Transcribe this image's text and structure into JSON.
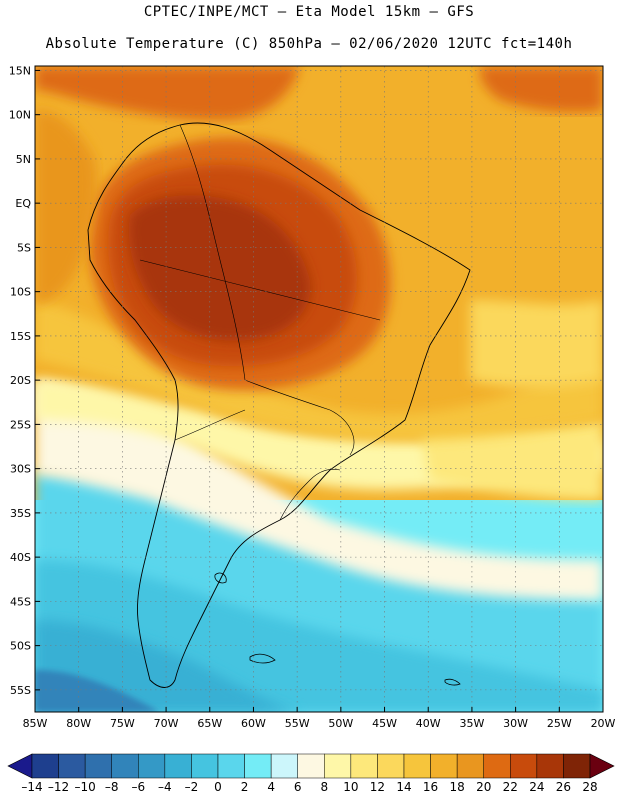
{
  "header": {
    "line1": "CPTEC/INPE/MCT –  Eta Model 15km – GFS",
    "line2": "Absolute Temperature (C) 850hPa – 02/06/2020 12UTC fct=140h"
  },
  "axes": {
    "lat_labels": [
      "15N",
      "10N",
      "5N",
      "EQ",
      "5S",
      "10S",
      "15S",
      "20S",
      "25S",
      "30S",
      "35S",
      "40S",
      "45S",
      "50S",
      "55S"
    ],
    "lon_labels": [
      "85W",
      "80W",
      "75W",
      "70W",
      "65W",
      "60W",
      "55W",
      "50W",
      "45W",
      "40W",
      "35W",
      "30W",
      "25W",
      "20W"
    ],
    "lon_range": [
      -85,
      -20
    ],
    "lat_range": [
      -57.5,
      15.5
    ],
    "grid": true
  },
  "colorbar": {
    "labels": [
      "-14",
      "-12",
      "-10",
      "-8",
      "-6",
      "-4",
      "-2",
      "0",
      "2",
      "4",
      "6",
      "8",
      "10",
      "12",
      "14",
      "16",
      "18",
      "20",
      "22",
      "24",
      "26",
      "28"
    ],
    "under_color": "#1a1a8c",
    "over_color": "#6a0010",
    "colors": [
      "#1e3f8e",
      "#2b5aa0",
      "#2f70ad",
      "#3184ba",
      "#3499c6",
      "#38b0d4",
      "#45c4e0",
      "#5ad6ec",
      "#74ecf6",
      "#ccf6fb",
      "#fdf8e2",
      "#fef7a8",
      "#fde87b",
      "#fbd85c",
      "#f6c53c",
      "#f2b02b",
      "#e9961f",
      "#de6a12",
      "#c84b0c",
      "#a83608",
      "#7f2406"
    ]
  }
}
